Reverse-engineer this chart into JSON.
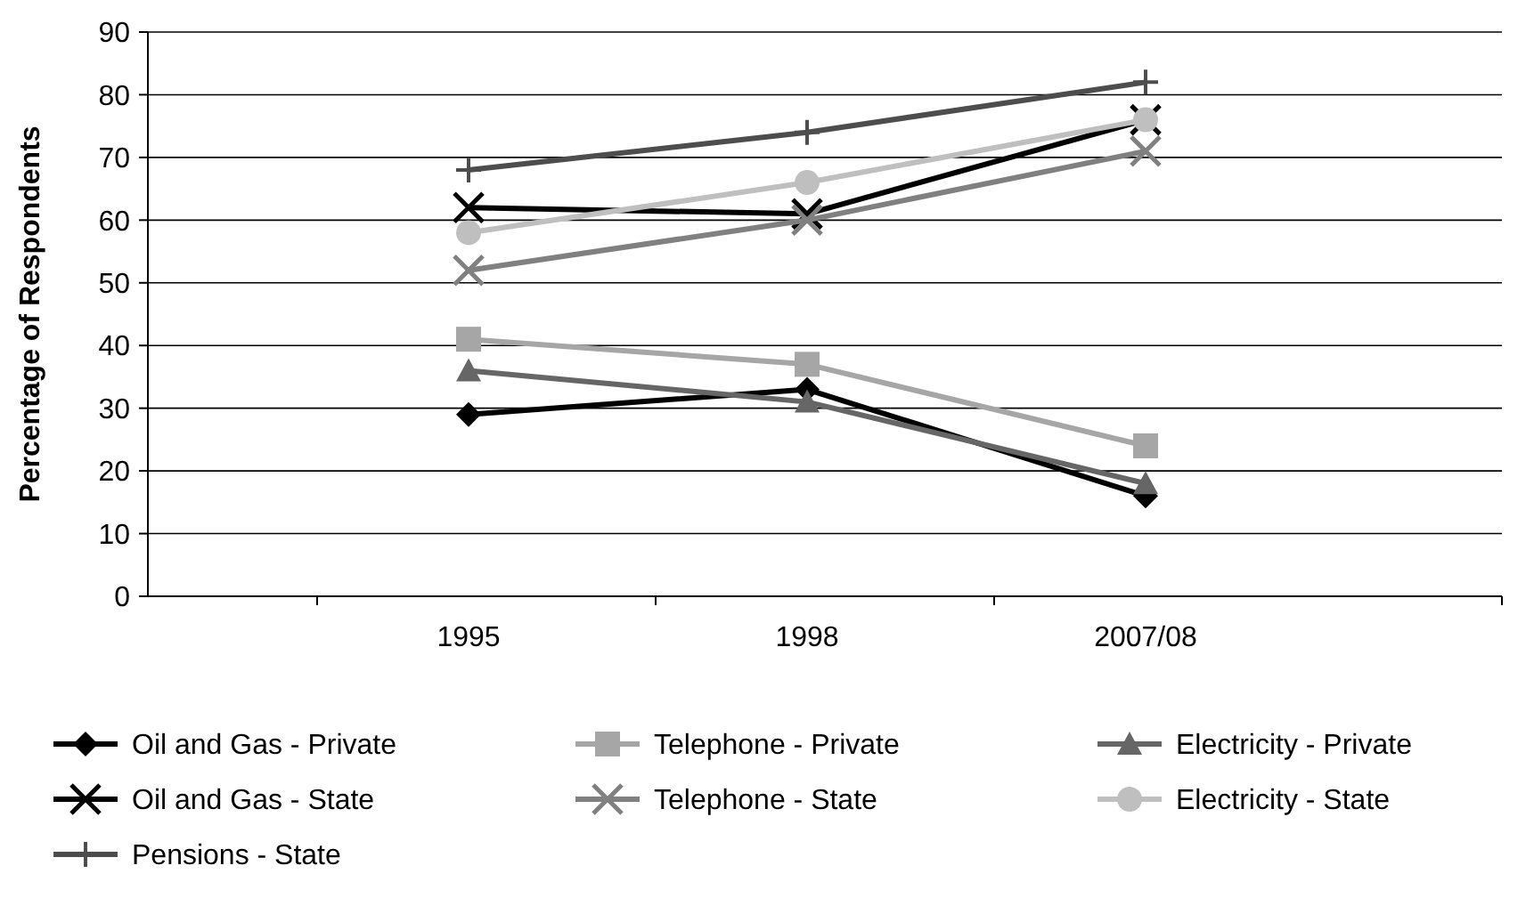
{
  "chart_data": {
    "type": "line",
    "ylabel": "Percentage of Respondents",
    "categories": [
      "1995",
      "1998",
      "2007/08"
    ],
    "ylim": [
      0,
      90
    ],
    "yticks": [
      0,
      10,
      20,
      30,
      40,
      50,
      60,
      70,
      80,
      90
    ],
    "grid": "y",
    "legend": "bottom",
    "series": [
      {
        "name": "Oil and Gas - Private",
        "color": "#000000",
        "marker": "diamond",
        "values": [
          29,
          33,
          16
        ]
      },
      {
        "name": "Telephone - Private",
        "color": "#a6a6a6",
        "marker": "square",
        "values": [
          41,
          37,
          24
        ]
      },
      {
        "name": "Electricity - Private",
        "color": "#666666",
        "marker": "triangle",
        "values": [
          36,
          31,
          18
        ]
      },
      {
        "name": "Oil and Gas - State",
        "color": "#000000",
        "marker": "cross",
        "values": [
          62,
          61,
          76
        ]
      },
      {
        "name": "Telephone - State",
        "color": "#808080",
        "marker": "cross",
        "values": [
          52,
          60,
          71
        ]
      },
      {
        "name": "Electricity - State",
        "color": "#bfbfbf",
        "marker": "circle",
        "values": [
          58,
          66,
          76
        ]
      },
      {
        "name": "Pensions - State",
        "color": "#4d4d4d",
        "marker": "plus",
        "values": [
          68,
          74,
          82
        ]
      }
    ]
  }
}
